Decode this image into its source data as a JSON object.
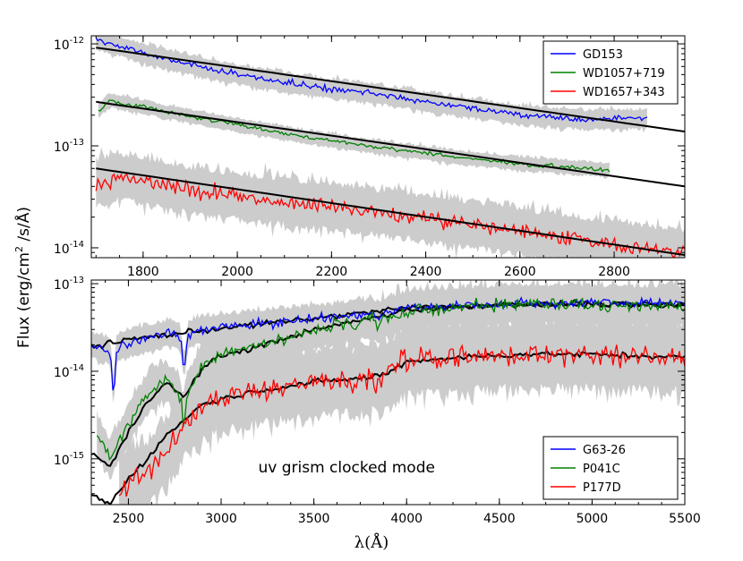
{
  "figure": {
    "ylabel": "Flux (erg/cm² /s/Å)",
    "ylabel_main": "Flux (erg/cm",
    "ylabel_sup": "2",
    "ylabel_rest": " /s/Å)",
    "xlabel": "λ(Å)"
  },
  "chart_data": [
    {
      "type": "line",
      "panel": "top",
      "yscale": "log",
      "xlim": [
        1690,
        2950
      ],
      "ylim": [
        8e-15,
        1.2e-12
      ],
      "xticks": [
        1800,
        2000,
        2200,
        2400,
        2600,
        2800
      ],
      "xtick_labels": [
        "1800",
        "2000",
        "2200",
        "2400",
        "2600",
        "2800"
      ],
      "yticks": [
        1e-14,
        1e-13,
        1e-12
      ],
      "ytick_labels": [
        {
          "base": "10",
          "exp": "-14"
        },
        {
          "base": "10",
          "exp": "-13"
        },
        {
          "base": "10",
          "exp": "-12"
        }
      ],
      "legend_position": "top-right",
      "series": [
        {
          "name": "GD153",
          "label": "GD153",
          "color": "#0000ff",
          "x": [
            1700,
            1850,
            2000,
            2150,
            2300,
            2450,
            2600,
            2750,
            2870
          ],
          "y": [
            1.1e-12,
            7e-13,
            5e-13,
            3.9e-13,
            3.2e-13,
            2.5e-13,
            2e-13,
            1.8e-13,
            1.85e-13
          ],
          "noise": 0.05,
          "x_end": 2870
        },
        {
          "name": "WD1057+719",
          "label": "WD1057+719",
          "color": "#008000",
          "x": [
            1705,
            1730,
            1850,
            2000,
            2150,
            2300,
            2450,
            2600,
            2790
          ],
          "y": [
            2.2e-13,
            2.8e-13,
            2.15e-13,
            1.6e-13,
            1.22e-13,
            9.7e-14,
            7.9e-14,
            6.7e-14,
            5.8e-14
          ],
          "noise": 0.035,
          "x_end": 2790
        },
        {
          "name": "WD1657+343",
          "label": "WD1657+343",
          "color": "#ff0000",
          "x": [
            1700,
            1750,
            1900,
            2050,
            2200,
            2350,
            2500,
            2650,
            2800,
            2950
          ],
          "y": [
            4.2e-14,
            5e-14,
            3.7e-14,
            3e-14,
            2.55e-14,
            2.1e-14,
            1.7e-14,
            1.35e-14,
            1.08e-14,
            9e-15
          ],
          "noise": 0.12,
          "x_end": 2950
        }
      ],
      "models": [
        {
          "name": "GD153 model",
          "x": [
            1700,
            2950
          ],
          "y": [
            9.2e-13,
            1.38e-13
          ]
        },
        {
          "name": "WD1057+719 model",
          "x": [
            1700,
            2950
          ],
          "y": [
            2.7e-13,
            4e-14
          ]
        },
        {
          "name": "WD1657+343 model",
          "x": [
            1700,
            2950
          ],
          "y": [
            6e-14,
            8.5e-15
          ]
        }
      ]
    },
    {
      "type": "line",
      "panel": "bottom",
      "yscale": "log",
      "xlim": [
        2300,
        5500
      ],
      "ylim": [
        3e-16,
        1.1e-13
      ],
      "xticks": [
        2500,
        3000,
        3500,
        4000,
        4500,
        5000,
        5500
      ],
      "xtick_labels": [
        "2500",
        "3000",
        "3500",
        "4000",
        "4500",
        "5000",
        "5500"
      ],
      "yticks": [
        1e-15,
        1e-14,
        1e-13
      ],
      "ytick_labels": [
        {
          "base": "10",
          "exp": "-15"
        },
        {
          "base": "10",
          "exp": "-14"
        },
        {
          "base": "10",
          "exp": "-13"
        }
      ],
      "legend_position": "bottom-right",
      "annotation": "uv grism clocked mode",
      "series": [
        {
          "name": "G63-26",
          "label": "G63-26",
          "color": "#0000ff",
          "x": [
            2300,
            2400,
            2500,
            2600,
            2700,
            2800,
            2900,
            3000,
            3200,
            3500,
            3800,
            3900,
            4000,
            4500,
            5000,
            5500
          ],
          "y": [
            2e-14,
            1.7e-14,
            2.1e-14,
            2.4e-14,
            2.7e-14,
            2.5e-14,
            3e-14,
            3.2e-14,
            3.5e-14,
            4e-14,
            4.5e-14,
            4.7e-14,
            5.3e-14,
            5.8e-14,
            6.2e-14,
            6e-14
          ],
          "noise": 0.08,
          "dips": [
            [
              2420,
              0.3,
              12
            ],
            [
              2800,
              0.45,
              15
            ],
            [
              3850,
              0.85,
              20
            ]
          ]
        },
        {
          "name": "P041C",
          "label": "P041C",
          "color": "#008000",
          "x": [
            2330,
            2400,
            2500,
            2600,
            2700,
            2800,
            2900,
            3000,
            3200,
            3400,
            3600,
            3800,
            3900,
            4000,
            4500,
            5000,
            5500
          ],
          "y": [
            2e-15,
            1e-15,
            2.5e-15,
            5.5e-15,
            8e-15,
            4.5e-15,
            1.2e-14,
            1.6e-14,
            2e-14,
            2.6e-14,
            3.3e-14,
            4e-14,
            4.2e-14,
            5e-14,
            5.8e-14,
            5.8e-14,
            5.5e-14
          ],
          "noise": 0.12,
          "dips": [
            [
              2800,
              0.5,
              12
            ],
            [
              3720,
              0.85,
              20
            ],
            [
              3850,
              0.8,
              15
            ]
          ]
        },
        {
          "name": "P177D",
          "label": "P177D",
          "color": "#ff0000",
          "x": [
            2450,
            2500,
            2600,
            2700,
            2800,
            2900,
            3000,
            3200,
            3500,
            3800,
            3900,
            4000,
            4300,
            4700,
            5000,
            5500
          ],
          "y": [
            4e-16,
            5e-16,
            6.5e-16,
            1.2e-15,
            2.5e-15,
            4e-15,
            5e-15,
            6e-15,
            7.5e-15,
            8.5e-15,
            9.5e-15,
            1.3e-14,
            1.45e-14,
            1.6e-14,
            1.55e-14,
            1.45e-14
          ],
          "noise": 0.2,
          "dips": [
            [
              3720,
              0.85,
              15
            ],
            [
              3850,
              0.8,
              15
            ],
            [
              4340,
              0.85,
              20
            ]
          ]
        }
      ],
      "models": [
        {
          "name": "G63-26 model",
          "x": [
            2300,
            2500,
            3000,
            3500,
            4000,
            4500,
            5000,
            5500
          ],
          "y": [
            1.9e-14,
            2.3e-14,
            3.1e-14,
            4e-14,
            5.3e-14,
            5.7e-14,
            5.9e-14,
            5.8e-14
          ]
        },
        {
          "name": "P041C model",
          "x": [
            2300,
            2400,
            2500,
            2600,
            2700,
            2800,
            2900,
            3000,
            3200,
            3400,
            3600,
            3800,
            4000,
            4500,
            5000,
            5500
          ],
          "y": [
            1.2e-15,
            8e-16,
            2e-15,
            4.5e-15,
            7.5e-15,
            5e-15,
            1.1e-14,
            1.5e-14,
            1.9e-14,
            2.6e-14,
            3.3e-14,
            4e-14,
            5e-14,
            5.8e-14,
            5.8e-14,
            5.5e-14
          ]
        },
        {
          "name": "P177D model",
          "x": [
            2300,
            2400,
            2500,
            2600,
            2700,
            2800,
            2900,
            3000,
            3200,
            3500,
            3800,
            3900,
            4000,
            4300,
            4700,
            5000,
            5500
          ],
          "y": [
            4e-16,
            3e-16,
            6e-16,
            1e-15,
            1.8e-15,
            2.8e-15,
            4.2e-15,
            4.8e-15,
            6e-15,
            7.5e-15,
            8.5e-15,
            9.5e-15,
            1.3e-14,
            1.45e-14,
            1.58e-14,
            1.55e-14,
            1.45e-14
          ]
        }
      ]
    }
  ],
  "colors": {
    "error_band": "#cccccc",
    "model": "#000000",
    "axes": "#000000"
  }
}
